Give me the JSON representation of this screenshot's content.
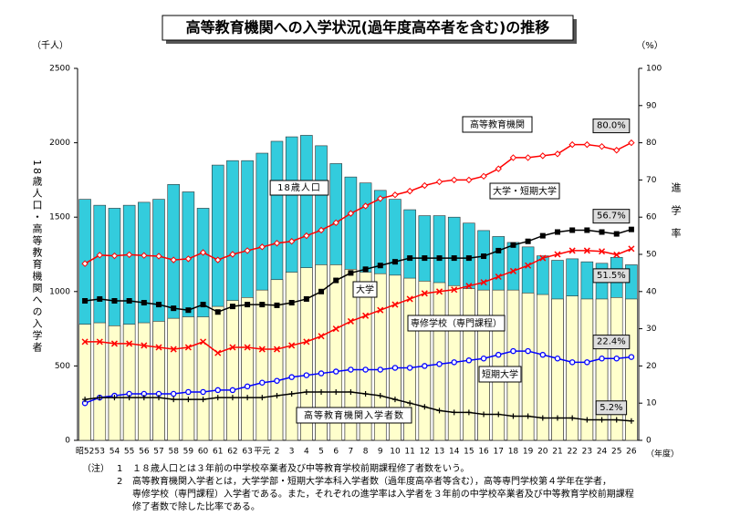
{
  "chart_data": {
    "type": "bar-line",
    "title": "高等教育機関への入学状況(過年度高卒者を含む)の推移",
    "y_unit": "（千人）",
    "y2_unit": "（%）",
    "ylabel": "18歳人口・高等教育機関への入学者",
    "y2label": "進学率",
    "xlabel": "（年度）",
    "categories": [
      "昭52",
      "53",
      "54",
      "55",
      "56",
      "57",
      "58",
      "59",
      "60",
      "61",
      "62",
      "63",
      "平元",
      "2",
      "3",
      "4",
      "5",
      "6",
      "7",
      "8",
      "9",
      "10",
      "11",
      "12",
      "13",
      "14",
      "15",
      "16",
      "17",
      "18",
      "19",
      "20",
      "21",
      "22",
      "23",
      "24",
      "25",
      "26"
    ],
    "ylim": [
      0,
      2500
    ],
    "yticks": [
      0,
      500,
      1000,
      1500,
      2000,
      2500
    ],
    "y2lim": [
      0,
      100
    ],
    "y2ticks": [
      0,
      10,
      20,
      30,
      40,
      50,
      60,
      70,
      80,
      90,
      100
    ],
    "bars": [
      {
        "name": "18歳人口",
        "color": "#33ccdd",
        "values": [
          1620,
          1580,
          1560,
          1580,
          1600,
          1620,
          1720,
          1670,
          1560,
          1850,
          1880,
          1880,
          1930,
          2010,
          2040,
          2050,
          1980,
          1860,
          1770,
          1730,
          1680,
          1620,
          1550,
          1510,
          1510,
          1500,
          1460,
          1410,
          1370,
          1330,
          1300,
          1240,
          1210,
          1220,
          1200,
          1190,
          1230,
          1180
        ]
      },
      {
        "name": "高等教育機関入学者数",
        "color": "#ffffcc",
        "values": [
          780,
          790,
          770,
          780,
          790,
          800,
          820,
          830,
          830,
          900,
          940,
          960,
          1010,
          1080,
          1130,
          1160,
          1180,
          1180,
          1150,
          1130,
          1120,
          1110,
          1090,
          1070,
          1060,
          1040,
          1020,
          1010,
          1010,
          1010,
          990,
          980,
          950,
          970,
          950,
          950,
          960,
          950
        ]
      }
    ],
    "series": [
      {
        "name": "高等教育機関",
        "color": "#ff0000",
        "marker": "diamond",
        "axis": "y2",
        "values": [
          47.5,
          49.8,
          49.6,
          49.9,
          49.7,
          49.5,
          48.5,
          48.8,
          50.5,
          48.5,
          50,
          51,
          52,
          53,
          53.5,
          55,
          56.5,
          58.5,
          61,
          63,
          65,
          66,
          67,
          68.5,
          69.5,
          70,
          70,
          71,
          73,
          76,
          76,
          76.5,
          77,
          79.5,
          79.5,
          79,
          78,
          80
        ],
        "value_labels": [
          null,
          null,
          null,
          null,
          null,
          null,
          null,
          null,
          null,
          null,
          null,
          null,
          null,
          null,
          null,
          null,
          null,
          null,
          null,
          null,
          null,
          null,
          null,
          null,
          null,
          null,
          null,
          null,
          null,
          null,
          null,
          null,
          null,
          null,
          null,
          null,
          null,
          "80.0%"
        ]
      },
      {
        "name": "大学・短期大学",
        "color": "#000000",
        "marker": "square",
        "axis": "y2",
        "values": [
          37.5,
          38,
          37.5,
          37.5,
          37,
          36.5,
          35.5,
          35,
          36.5,
          34.5,
          36,
          36.5,
          36.5,
          36.3,
          37,
          38,
          40,
          43,
          45,
          46,
          47,
          48,
          49,
          49,
          49,
          49,
          49,
          49.5,
          51,
          52.5,
          53.5,
          55,
          56,
          56.5,
          56.5,
          56,
          55.5,
          56.7
        ],
        "value_labels": [
          null,
          null,
          null,
          null,
          null,
          null,
          null,
          null,
          null,
          null,
          null,
          null,
          null,
          null,
          null,
          null,
          null,
          null,
          null,
          null,
          null,
          null,
          null,
          null,
          null,
          null,
          null,
          null,
          null,
          null,
          null,
          null,
          null,
          null,
          null,
          null,
          null,
          "56.7%"
        ]
      },
      {
        "name": "大学",
        "color": "#ff0000",
        "marker": "x",
        "axis": "y2",
        "values": [
          26.5,
          26.5,
          26,
          26,
          25.5,
          25,
          24.5,
          25,
          26.5,
          23.5,
          25,
          25,
          24.5,
          24.5,
          25.5,
          26.5,
          28,
          30,
          32,
          33.5,
          35,
          36.5,
          38,
          39.5,
          40,
          40.5,
          41.5,
          42.5,
          44,
          45.5,
          47,
          49,
          50,
          51,
          51,
          50.8,
          49.9,
          51.5
        ],
        "value_labels": [
          null,
          null,
          null,
          null,
          null,
          null,
          null,
          null,
          null,
          null,
          null,
          null,
          null,
          null,
          null,
          null,
          null,
          null,
          null,
          null,
          null,
          null,
          null,
          null,
          null,
          null,
          null,
          null,
          null,
          null,
          null,
          null,
          null,
          null,
          null,
          null,
          null,
          "51.5%"
        ]
      },
      {
        "name": "専修学校（専門課程）",
        "color": "#0000ff",
        "marker": "circle",
        "axis": "y2",
        "values": [
          10,
          11.5,
          12,
          12.5,
          12.5,
          12.5,
          12.5,
          13,
          13,
          13.5,
          13.5,
          14.5,
          15.5,
          16,
          17,
          17.5,
          18,
          18.5,
          19,
          19,
          19,
          19.5,
          19.5,
          20,
          20.5,
          21,
          21.5,
          22,
          23,
          24,
          24,
          23,
          22,
          21,
          21,
          22,
          22,
          22.4
        ],
        "value_labels": [
          null,
          null,
          null,
          null,
          null,
          null,
          null,
          null,
          null,
          null,
          null,
          null,
          null,
          null,
          null,
          null,
          null,
          null,
          null,
          null,
          null,
          null,
          null,
          null,
          null,
          null,
          null,
          null,
          null,
          null,
          null,
          null,
          null,
          null,
          null,
          null,
          null,
          "22.4%"
        ]
      },
      {
        "name": "短期大学",
        "color": "#000000",
        "marker": "plus",
        "axis": "y2",
        "values": [
          11,
          11.5,
          11.5,
          11.5,
          11.5,
          11.5,
          11,
          11,
          11,
          11.5,
          11.5,
          11.5,
          11.5,
          12,
          12.5,
          13,
          13,
          13,
          13,
          12.5,
          12,
          11,
          10,
          9,
          8,
          7.5,
          7.5,
          7,
          7,
          6.5,
          6.5,
          6,
          6,
          6,
          5.5,
          5.5,
          5.5,
          5.2
        ],
        "value_labels": [
          null,
          null,
          null,
          null,
          null,
          null,
          null,
          null,
          null,
          null,
          null,
          null,
          null,
          null,
          null,
          null,
          null,
          null,
          null,
          null,
          null,
          null,
          null,
          null,
          null,
          null,
          null,
          null,
          null,
          null,
          null,
          null,
          null,
          null,
          null,
          null,
          null,
          "5.2%"
        ]
      }
    ]
  },
  "notes": {
    "heading": "（注）",
    "items": [
      {
        "num": "1",
        "lines": [
          "１８歳人口とは３年前の中学校卒業者及び中等教育学校前期課程修了者数をいう。"
        ]
      },
      {
        "num": "2",
        "lines": [
          "高等教育機関入学者とは，大学学部・短期大学本科入学者数（過年度高卒者等含む），高等専門学校第４学年在学者，",
          "専修学校（専門課程）入学者である。また，それぞれの進学率は入学者を３年前の中学校卒業者及び中等教育学校前期課程",
          "修了者数で除した比率である。"
        ]
      }
    ]
  }
}
